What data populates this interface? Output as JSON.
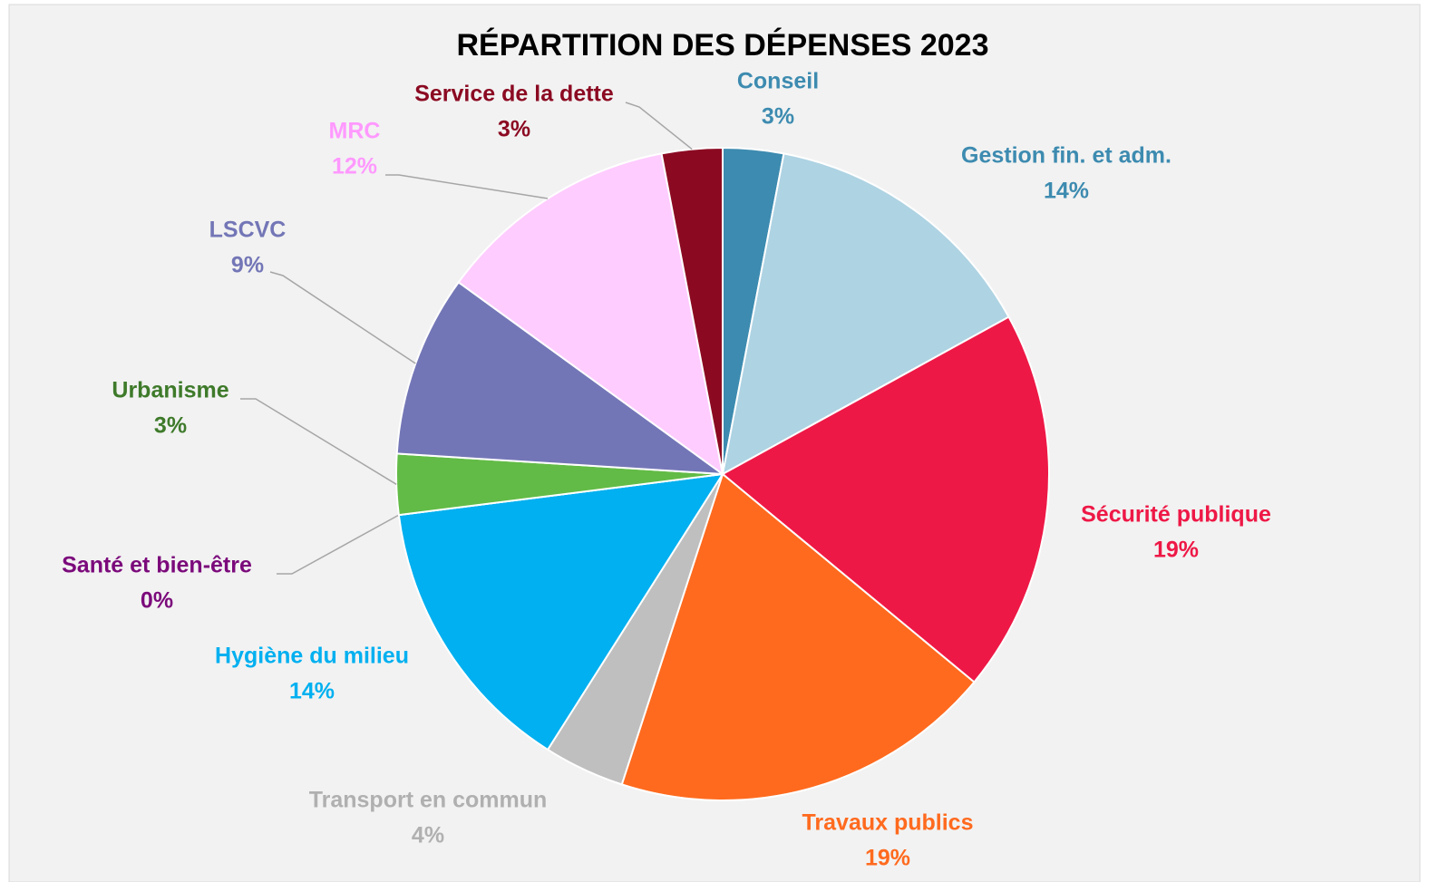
{
  "chart_data": {
    "type": "pie",
    "title": "RÉPARTITION DES DÉPENSES 2023",
    "categories": [
      "Conseil",
      "Gestion fin. et adm.",
      "Sécurité publique",
      "Travaux publics",
      "Transport en commun",
      "Hygiène du milieu",
      "Santé et bien-être",
      "Urbanisme",
      "LSCVC",
      "MRC",
      "Service de la dette"
    ],
    "values": [
      3,
      14,
      19,
      19,
      4,
      14,
      0,
      3,
      9,
      12,
      3
    ],
    "value_labels": [
      "3%",
      "14%",
      "19%",
      "19%",
      "4%",
      "14%",
      "0%",
      "3%",
      "9%",
      "12%",
      "3%"
    ],
    "colors": [
      "#3d8bb0",
      "#aed3e3",
      "#ee1846",
      "#ff6a1e",
      "#bfbfbf",
      "#00b0f0",
      "#7b0a7b",
      "#62bb46",
      "#7376b6",
      "#ffccff",
      "#8b0a22"
    ],
    "label_colors": [
      "#3d8bb0",
      "#3d8bb0",
      "#ee1846",
      "#ff6a1e",
      "#b0b0b0",
      "#00b0f0",
      "#7b0a7b",
      "#3e7a2a",
      "#7376b6",
      "#ff99ff",
      "#8b0a22"
    ]
  }
}
